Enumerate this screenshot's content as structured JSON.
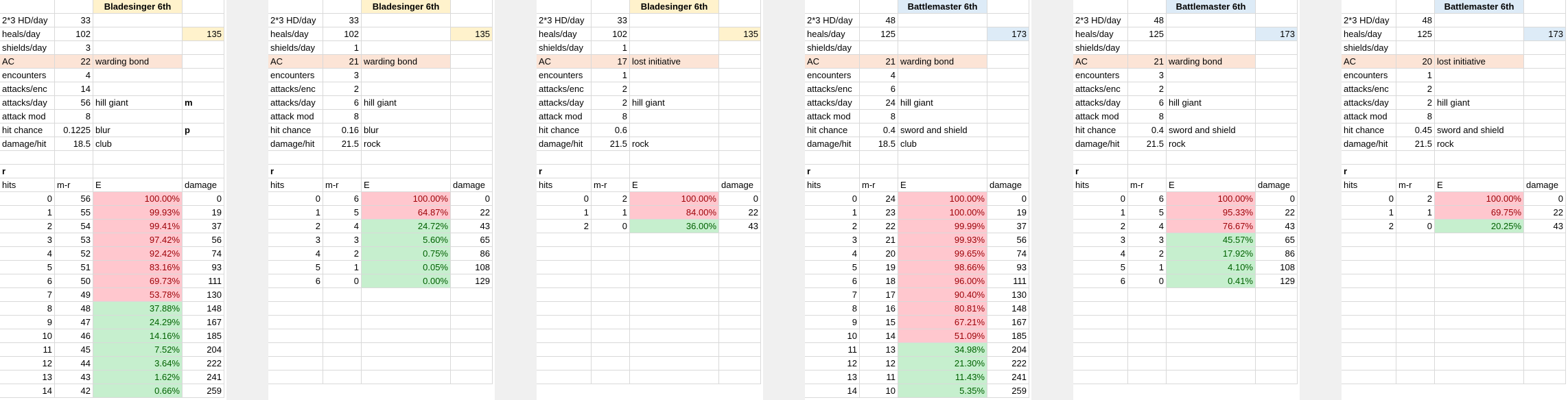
{
  "colors": {
    "header_yellow": "#fff2cc",
    "header_blue": "#ddebf7",
    "ac_orange": "#fce4d6",
    "bad_red": "#ffc7ce",
    "bad_text": "#9c0006",
    "good_green": "#c6efce",
    "good_text": "#006100",
    "gap_gray": "#f0f0f0"
  },
  "row_labels": {
    "hd": "2*3 HD/day",
    "heals": "heals/day",
    "shields": "shields/day",
    "ac": "AC",
    "encounters": "encounters",
    "attacks_enc": "attacks/enc",
    "attacks_day": "attacks/day",
    "attack_mod": "attack mod",
    "hit_chance": "hit chance",
    "damage_hit": "damage/hit",
    "r": "r",
    "hits": "hits",
    "m_r": "m-r",
    "e": "E",
    "damage": "damage"
  },
  "blocks": [
    {
      "title": "Bladesinger 6th",
      "header_color": "yellow",
      "hd": "33",
      "heals": "102",
      "heals_total": "135",
      "shields": "3",
      "ac": "22",
      "ac_note": "warding bond",
      "encounters": "4",
      "attacks_enc": "14",
      "attacks_day": "56",
      "attacks_day_note": "hill giant",
      "attacks_day_extra": "m",
      "attack_mod": "8",
      "hit_chance": "0.1225",
      "hit_chance_note": "blur",
      "hit_chance_extra": "p",
      "damage_hit": "18.5",
      "damage_hit_note": "club",
      "table": [
        [
          "0",
          "56",
          "100.00%",
          "0",
          "bad"
        ],
        [
          "1",
          "55",
          "99.93%",
          "19",
          "bad"
        ],
        [
          "2",
          "54",
          "99.41%",
          "37",
          "bad"
        ],
        [
          "3",
          "53",
          "97.42%",
          "56",
          "bad"
        ],
        [
          "4",
          "52",
          "92.42%",
          "74",
          "bad"
        ],
        [
          "5",
          "51",
          "83.16%",
          "93",
          "bad"
        ],
        [
          "6",
          "50",
          "69.73%",
          "111",
          "bad"
        ],
        [
          "7",
          "49",
          "53.78%",
          "130",
          "bad"
        ],
        [
          "8",
          "48",
          "37.88%",
          "148",
          "good"
        ],
        [
          "9",
          "47",
          "24.29%",
          "167",
          "good"
        ],
        [
          "10",
          "46",
          "14.16%",
          "185",
          "good"
        ],
        [
          "11",
          "45",
          "7.52%",
          "204",
          "good"
        ],
        [
          "12",
          "44",
          "3.64%",
          "222",
          "good"
        ],
        [
          "13",
          "43",
          "1.62%",
          "241",
          "good"
        ],
        [
          "14",
          "42",
          "0.66%",
          "259",
          "good"
        ]
      ]
    },
    {
      "title": "Bladesinger 6th",
      "header_color": "yellow",
      "hd": "33",
      "heals": "102",
      "heals_total": "135",
      "shields": "1",
      "ac": "21",
      "ac_note": "warding bond",
      "encounters": "3",
      "attacks_enc": "2",
      "attacks_day": "6",
      "attacks_day_note": "hill giant",
      "attacks_day_extra": "",
      "attack_mod": "8",
      "hit_chance": "0.16",
      "hit_chance_note": "blur",
      "hit_chance_extra": "",
      "damage_hit": "21.5",
      "damage_hit_note": "rock",
      "table": [
        [
          "0",
          "6",
          "100.00%",
          "0",
          "bad"
        ],
        [
          "1",
          "5",
          "64.87%",
          "22",
          "bad"
        ],
        [
          "2",
          "4",
          "24.72%",
          "43",
          "good"
        ],
        [
          "3",
          "3",
          "5.60%",
          "65",
          "good"
        ],
        [
          "4",
          "2",
          "0.75%",
          "86",
          "good"
        ],
        [
          "5",
          "1",
          "0.05%",
          "108",
          "good"
        ],
        [
          "6",
          "0",
          "0.00%",
          "129",
          "good"
        ]
      ]
    },
    {
      "title": "Bladesinger 6th",
      "header_color": "yellow",
      "hd": "33",
      "heals": "102",
      "heals_total": "135",
      "shields": "1",
      "ac": "17",
      "ac_note": "lost initiative",
      "encounters": "1",
      "attacks_enc": "2",
      "attacks_day": "2",
      "attacks_day_note": "hill giant",
      "attacks_day_extra": "",
      "attack_mod": "8",
      "hit_chance": "0.6",
      "hit_chance_note": "",
      "hit_chance_extra": "",
      "damage_hit": "21.5",
      "damage_hit_note": "rock",
      "table": [
        [
          "0",
          "2",
          "100.00%",
          "0",
          "bad"
        ],
        [
          "1",
          "1",
          "84.00%",
          "22",
          "bad"
        ],
        [
          "2",
          "0",
          "36.00%",
          "43",
          "good"
        ]
      ]
    },
    {
      "title": "Battlemaster 6th",
      "header_color": "blue",
      "hd": "48",
      "heals": "125",
      "heals_total": "173",
      "shields": "",
      "ac": "21",
      "ac_note": "warding bond",
      "encounters": "4",
      "attacks_enc": "6",
      "attacks_day": "24",
      "attacks_day_note": "hill giant",
      "attacks_day_extra": "",
      "attack_mod": "8",
      "hit_chance": "0.4",
      "hit_chance_note": "sword and shield",
      "hit_chance_extra": "",
      "damage_hit": "18.5",
      "damage_hit_note": "club",
      "table": [
        [
          "0",
          "24",
          "100.00%",
          "0",
          "bad"
        ],
        [
          "1",
          "23",
          "100.00%",
          "19",
          "bad"
        ],
        [
          "2",
          "22",
          "99.99%",
          "37",
          "bad"
        ],
        [
          "3",
          "21",
          "99.93%",
          "56",
          "bad"
        ],
        [
          "4",
          "20",
          "99.65%",
          "74",
          "bad"
        ],
        [
          "5",
          "19",
          "98.66%",
          "93",
          "bad"
        ],
        [
          "6",
          "18",
          "96.00%",
          "111",
          "bad"
        ],
        [
          "7",
          "17",
          "90.40%",
          "130",
          "bad"
        ],
        [
          "8",
          "16",
          "80.81%",
          "148",
          "bad"
        ],
        [
          "9",
          "15",
          "67.21%",
          "167",
          "bad"
        ],
        [
          "10",
          "14",
          "51.09%",
          "185",
          "bad"
        ],
        [
          "11",
          "13",
          "34.98%",
          "204",
          "good"
        ],
        [
          "12",
          "12",
          "21.30%",
          "222",
          "good"
        ],
        [
          "13",
          "11",
          "11.43%",
          "241",
          "good"
        ],
        [
          "14",
          "10",
          "5.35%",
          "259",
          "good"
        ]
      ]
    },
    {
      "title": "Battlemaster 6th",
      "header_color": "blue",
      "hd": "48",
      "heals": "125",
      "heals_total": "173",
      "shields": "",
      "ac": "21",
      "ac_note": "warding bond",
      "encounters": "3",
      "attacks_enc": "2",
      "attacks_day": "6",
      "attacks_day_note": "hill giant",
      "attacks_day_extra": "",
      "attack_mod": "8",
      "hit_chance": "0.4",
      "hit_chance_note": "sword and shield",
      "hit_chance_extra": "",
      "damage_hit": "21.5",
      "damage_hit_note": "rock",
      "table": [
        [
          "0",
          "6",
          "100.00%",
          "0",
          "bad"
        ],
        [
          "1",
          "5",
          "95.33%",
          "22",
          "bad"
        ],
        [
          "2",
          "4",
          "76.67%",
          "43",
          "bad"
        ],
        [
          "3",
          "3",
          "45.57%",
          "65",
          "good"
        ],
        [
          "4",
          "2",
          "17.92%",
          "86",
          "good"
        ],
        [
          "5",
          "1",
          "4.10%",
          "108",
          "good"
        ],
        [
          "6",
          "0",
          "0.41%",
          "129",
          "good"
        ]
      ]
    },
    {
      "title": "Battlemaster 6th",
      "header_color": "blue",
      "hd": "48",
      "heals": "125",
      "heals_total": "173",
      "shields": "",
      "ac": "20",
      "ac_note": "lost initiative",
      "encounters": "1",
      "attacks_enc": "2",
      "attacks_day": "2",
      "attacks_day_note": "hill giant",
      "attacks_day_extra": "",
      "attack_mod": "8",
      "hit_chance": "0.45",
      "hit_chance_note": "sword and shield",
      "hit_chance_extra": "",
      "damage_hit": "21.5",
      "damage_hit_note": "rock",
      "table": [
        [
          "0",
          "2",
          "100.00%",
          "0",
          "bad"
        ],
        [
          "1",
          "1",
          "69.75%",
          "22",
          "bad"
        ],
        [
          "2",
          "0",
          "20.25%",
          "43",
          "good"
        ]
      ]
    }
  ]
}
